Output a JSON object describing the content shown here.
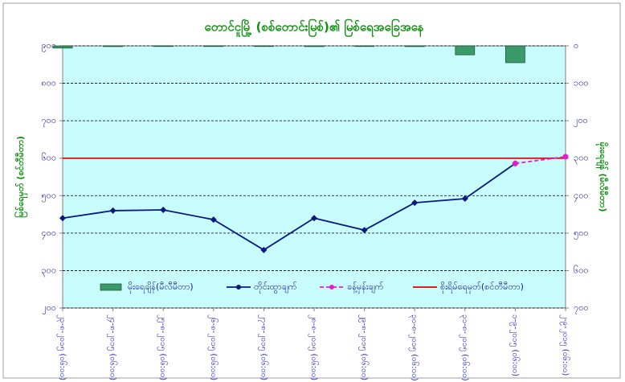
{
  "chart_data": {
    "type": "line",
    "title": "တောင်ငူမြို့ (စစ်တောင်းမြစ်)၏ မြစ်ရေအခြေအနေ",
    "y_label": "မြစ်ရေမှတ် (စင်တီမီတာ)",
    "y2_label": "မိုးရေချိန် (မီလီမီတာ)",
    "categories": [
      "၂၃-၈-၂၀၁၅ (၀၆:၀၀)",
      "၂၄-၈-၂၀၁၅ (၀၆:၀၀)",
      "၂၅-၈-၂၀၁၅ (၀၆:၀၀)",
      "၂၆-၈-၂၀၁၅ (၀၆:၀၀)",
      "၂၇-၈-၂၀၁၅ (၀၆:၀၀)",
      "၂၈-၈-၂၀၁၅ (၀၆:၀၀)",
      "၂၉-၈-၂၀၁၅ (၀၆:၀၀)",
      "၃၀-၈-၂၀၁၅ (၀၆:၀၀)",
      "၃၁-၈-၂၀၁၅ (၀၆:၀၀)",
      "၁-၉-၂၀၁၅ (၀၆:၀၀)",
      "၂-၉-၂၀၁၅ (၀၆:၀၀)"
    ],
    "series": [
      {
        "name": "မိုးရေချိန်(မီလီမီတာ)",
        "kind": "bar",
        "axis": "y2",
        "color": "#3a9a6a",
        "values": [
          6,
          2,
          0,
          0,
          0,
          2,
          0,
          2,
          24,
          45,
          null
        ]
      },
      {
        "name": "တိုင်းထွာချက်",
        "kind": "line",
        "color": "#0a1a80",
        "dashed": false,
        "marker": "diamond",
        "values": [
          440,
          460,
          462,
          436,
          355,
          440,
          408,
          481,
          492,
          586,
          null
        ]
      },
      {
        "name": "ခန့်မှန်းချက်",
        "kind": "line",
        "color": "#e020d0",
        "dashed": true,
        "marker": "circle",
        "values": [
          null,
          null,
          null,
          null,
          null,
          null,
          null,
          null,
          null,
          586,
          604
        ]
      }
    ],
    "danger_level": {
      "name": "စိုးရိမ်ရေမှတ်(စင်တီမီတာ)",
      "value": 600,
      "color": "#e00000"
    },
    "ylim": [
      200,
      900
    ],
    "yticks": [
      {
        "value": 200,
        "label": "၂၀၀"
      },
      {
        "value": 300,
        "label": "၃၀၀"
      },
      {
        "value": 400,
        "label": "၄၀၀"
      },
      {
        "value": 500,
        "label": "၅၀၀"
      },
      {
        "value": 600,
        "label": "၆၀၀"
      },
      {
        "value": 700,
        "label": "၇၀၀"
      },
      {
        "value": 800,
        "label": "၈၀၀"
      },
      {
        "value": 900,
        "label": "၉၀၀"
      }
    ],
    "y2lim": [
      0,
      700
    ],
    "y2_inverted": true,
    "y2ticks": [
      {
        "value": 0,
        "label": "၀"
      },
      {
        "value": 100,
        "label": "၁၀၀"
      },
      {
        "value": 200,
        "label": "၂၀၀"
      },
      {
        "value": 300,
        "label": "၃၀၀"
      },
      {
        "value": 400,
        "label": "၄၀၀"
      },
      {
        "value": 500,
        "label": "၅၀၀"
      },
      {
        "value": 600,
        "label": "၆၀၀"
      },
      {
        "value": 700,
        "label": "၇၀၀"
      }
    ],
    "grid": true
  }
}
